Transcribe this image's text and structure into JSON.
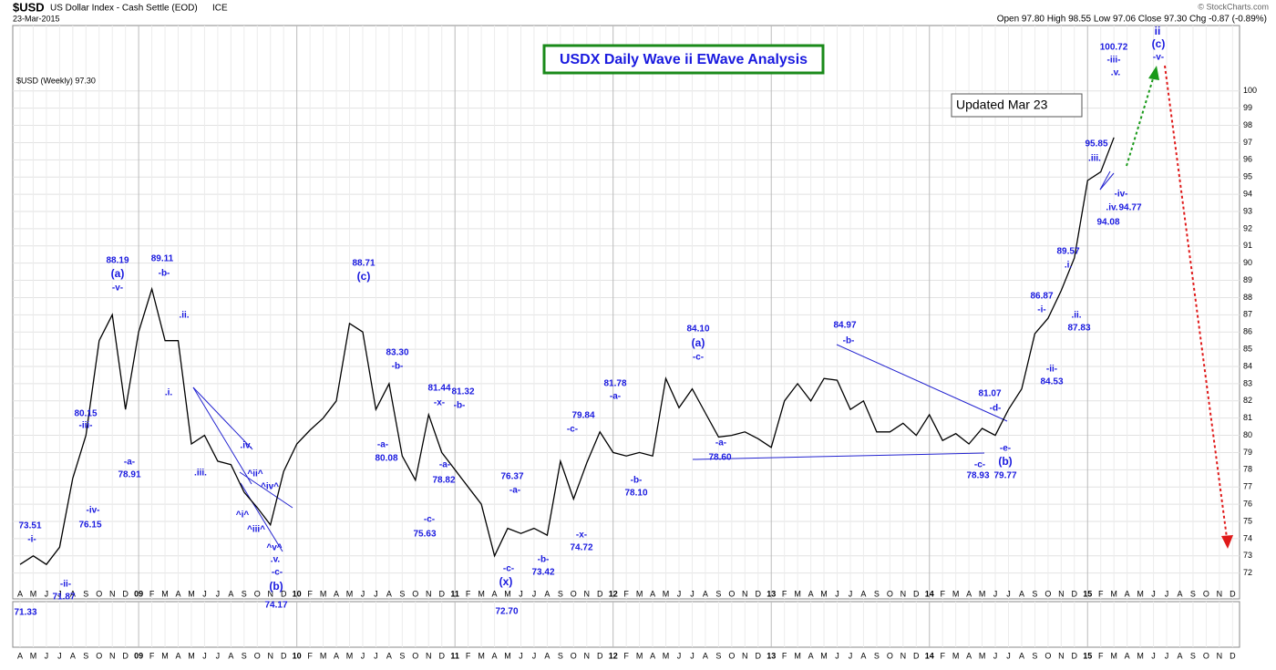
{
  "header": {
    "symbol": "$USD",
    "name": "US Dollar Index - Cash Settle (EOD)",
    "exchange": "ICE",
    "date": "23-Mar-2015",
    "copyright": "© StockCharts.com",
    "quote": "Open 97.80 High 98.55 Low 97.06 Close 97.30 Chg -0.87 (-0.89%)",
    "legend": "$USD (Weekly) 97.30"
  },
  "chart_data": {
    "type": "line",
    "title": "USDX Daily Wave ii EWave Analysis",
    "subtitle": "Updated Mar 23",
    "color": "#000000",
    "grid": true,
    "categories": [
      "A",
      "M",
      "J",
      "J",
      "A",
      "S",
      "O",
      "N",
      "D",
      "09",
      "F",
      "M",
      "A",
      "M",
      "J",
      "J",
      "A",
      "S",
      "O",
      "N",
      "D",
      "10",
      "F",
      "M",
      "A",
      "M",
      "J",
      "J",
      "A",
      "S",
      "O",
      "N",
      "D",
      "11",
      "F",
      "M",
      "A",
      "M",
      "J",
      "J",
      "A",
      "S",
      "O",
      "N",
      "D",
      "12",
      "F",
      "M",
      "A",
      "M",
      "J",
      "J",
      "A",
      "S",
      "O",
      "N",
      "D",
      "13",
      "F",
      "M",
      "A",
      "M",
      "J",
      "J",
      "A",
      "S",
      "O",
      "N",
      "D",
      "14",
      "F",
      "M",
      "A",
      "M",
      "J",
      "J",
      "A",
      "S",
      "O",
      "N",
      "D",
      "15",
      "F",
      "M",
      "A",
      "M",
      "J",
      "J",
      "A",
      "S",
      "O",
      "N",
      "D"
    ],
    "values": [
      72.5,
      73,
      72.5,
      73.5,
      77.5,
      80,
      85.5,
      87,
      81.5,
      86,
      88.5,
      85.5,
      85.5,
      79.5,
      80,
      78.5,
      78.3,
      76.7,
      75.8,
      74.8,
      77.9,
      79.5,
      80.3,
      81,
      82,
      86.5,
      86,
      81.5,
      83,
      78.8,
      77.4,
      81.2,
      79,
      78,
      77,
      76,
      73,
      74.6,
      74.3,
      74.6,
      74.2,
      78.5,
      76.3,
      78.4,
      80.2,
      79,
      78.8,
      79,
      78.8,
      83.3,
      81.6,
      82.7,
      81.3,
      79.9,
      80,
      80.2,
      79.8,
      79.3,
      82,
      83,
      82,
      83.3,
      83.2,
      81.5,
      82,
      80.2,
      80.2,
      80.7,
      80,
      81.2,
      79.7,
      80.1,
      79.5,
      80.4,
      80,
      81.5,
      82.7,
      85.9,
      86.8,
      88.4,
      90.3,
      94.8,
      95.3,
      97.3,
      null,
      null,
      null,
      null,
      null,
      null,
      null,
      null,
      null
    ],
    "ylim": [
      70.5,
      103.8
    ],
    "yticks": [
      72,
      73,
      74,
      75,
      76,
      77,
      78,
      79,
      80,
      81,
      82,
      83,
      84,
      85,
      86,
      87,
      88,
      89,
      90,
      91,
      92,
      93,
      94,
      95,
      96,
      97,
      98,
      99,
      100
    ],
    "annotations": [
      "73.51",
      "-i-",
      "-ii-",
      "71.87",
      "71.33",
      "80.15",
      "-iii-",
      "-iv-",
      "76.15",
      "88.19",
      "(a)",
      "-v-",
      "-a-",
      "78.91",
      "89.11",
      "-b-",
      ".ii.",
      ".i.",
      ".iii.",
      ".iv.",
      "^i^",
      "^ii^",
      "^iii^",
      "^iv^",
      "^v^",
      ".v.",
      "-c-",
      "(b)",
      "74.17",
      "88.71",
      "(c)",
      "83.30",
      "-b-",
      "-a-",
      "80.08",
      "-c-",
      "75.63",
      "81.44",
      "-x-",
      "81.32",
      "-b-",
      "-a-",
      "78.82",
      "76.37",
      "-a-",
      "-c-",
      "(x)",
      "72.70",
      "-b-",
      "73.42",
      "79.84",
      "-c-",
      "-x-",
      "74.72",
      "81.78",
      "-a-",
      "-b-",
      "78.10",
      "84.10",
      "(a)",
      "-c-",
      "-a-",
      "78.60",
      "84.97",
      "-b-",
      "81.07",
      "-d-",
      "-e-",
      "(b)",
      "79.77",
      "-c-",
      "78.93",
      "86.87",
      "-i-",
      "-ii-",
      "84.53",
      "89.57",
      ".i.",
      ".ii.",
      "87.83",
      "95.85",
      ".iii.",
      "-iv-",
      ".iv.",
      "94.77",
      "94.08",
      "100.72",
      "-iii-",
      ".v.",
      "ii",
      "(c)",
      "-v-"
    ]
  }
}
